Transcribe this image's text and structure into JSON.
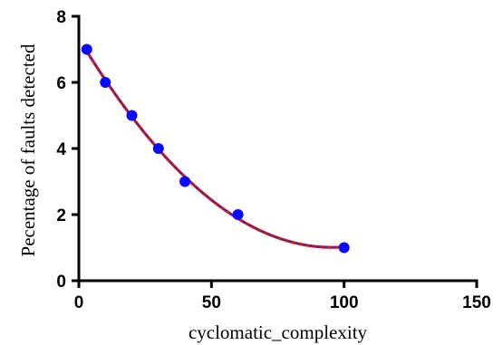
{
  "chart_data": {
    "type": "scatter",
    "xlabel": "cyclomatic_complexity",
    "ylabel": "Pecentage of faults detected",
    "xlim": [
      0,
      150
    ],
    "ylim": [
      0,
      8
    ],
    "xticks": [
      0,
      50,
      100,
      150
    ],
    "yticks": [
      0,
      2,
      4,
      6,
      8
    ],
    "grid": false,
    "legend": "none",
    "series": [
      {
        "x": [
          3,
          10,
          20,
          30,
          40,
          60,
          100
        ],
        "y": [
          7,
          6,
          5,
          4,
          3,
          2,
          1
        ],
        "marker_color": "#0a0aff",
        "fit_line_color": "#cc1a1a",
        "fit_line_dash_color": "#2a2ad8",
        "fit_line": "smooth-curve"
      }
    ]
  }
}
